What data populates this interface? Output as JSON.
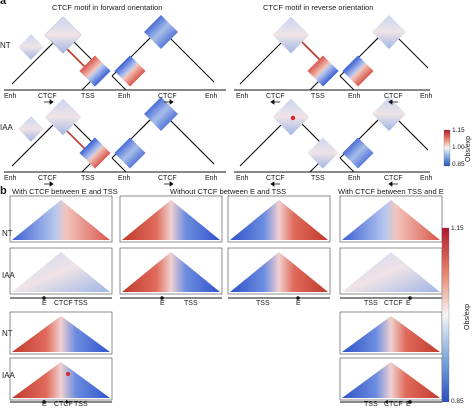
{
  "panel_a": {
    "letter": "a",
    "title_forward": "CTCF motif in forward orientation",
    "title_reverse": "CTCF motif in reverse orientation",
    "row_nt": "NT",
    "row_iaa": "IAA",
    "track_labels_forward": [
      "Enh",
      "CTCF",
      "TSS",
      "Enh",
      "CTCF",
      "Enh"
    ],
    "track_labels_reverse": [
      "Enh",
      "CTCF",
      "TSS",
      "Enh",
      "CTCF",
      "Enh"
    ],
    "colorbar": {
      "max": "1.15",
      "mid": "1.00",
      "min": "0.85",
      "label": "Obs/exp"
    }
  },
  "panel_b": {
    "letter": "b",
    "title_left": "With CTCF between E and TSS",
    "title_middle": "Without CTCF between E and TSS",
    "title_right": "With CTCF between TSS and E",
    "row_nt": "NT",
    "row_iaa": "IAA",
    "axis_left": [
      "E",
      "CTCF",
      "TSS"
    ],
    "axis_mid1": [
      "E",
      "TSS"
    ],
    "axis_mid2": [
      "TSS",
      "E"
    ],
    "axis_right": [
      "TSS",
      "CTCF",
      "E"
    ],
    "colorbar": {
      "max": "1.15",
      "min": "0.85",
      "label": "Obs/exp"
    }
  }
}
